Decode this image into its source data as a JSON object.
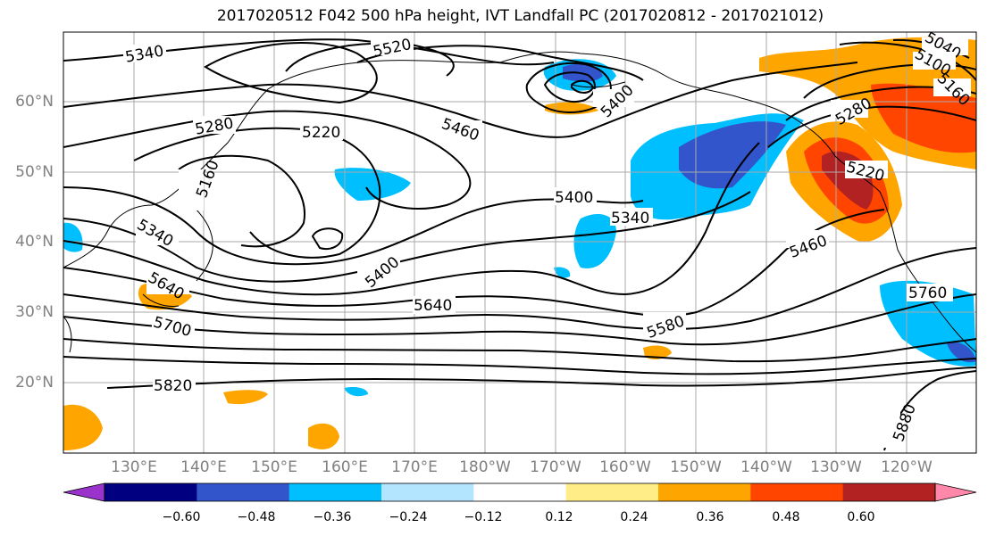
{
  "title": "2017020512 F042 500 hPa height, IVT Landfall PC (2017020812 - 2017021012)",
  "lat_labels": [
    "60°N",
    "50°N",
    "40°N",
    "30°N",
    "20°N"
  ],
  "lon_labels": [
    "130°E",
    "140°E",
    "150°E",
    "160°E",
    "170°E",
    "180°W",
    "170°W",
    "160°W",
    "150°W",
    "140°W",
    "130°W",
    "120°W"
  ],
  "colorbar": {
    "colors": [
      "#9933cc",
      "#000080",
      "#3355cc",
      "#00bfff",
      "#b3e5ff",
      "#ffffff",
      "#ffee88",
      "#ffa500",
      "#ff4500",
      "#b22222",
      "#ff88aa"
    ],
    "ticks": [
      "−0.60",
      "−0.48",
      "−0.36",
      "−0.24",
      "−0.12",
      "0.12",
      "0.24",
      "0.36",
      "0.48",
      "0.60"
    ]
  },
  "contour_labels": [
    "5340",
    "5520",
    "5280",
    "5220",
    "5160",
    "5460",
    "5400",
    "5340",
    "5400",
    "5640",
    "5700",
    "5820",
    "5580",
    "5460",
    "5340",
    "5280",
    "5400",
    "5760",
    "5880",
    "5040",
    "5100",
    "5220",
    "5160",
    "5640"
  ]
}
